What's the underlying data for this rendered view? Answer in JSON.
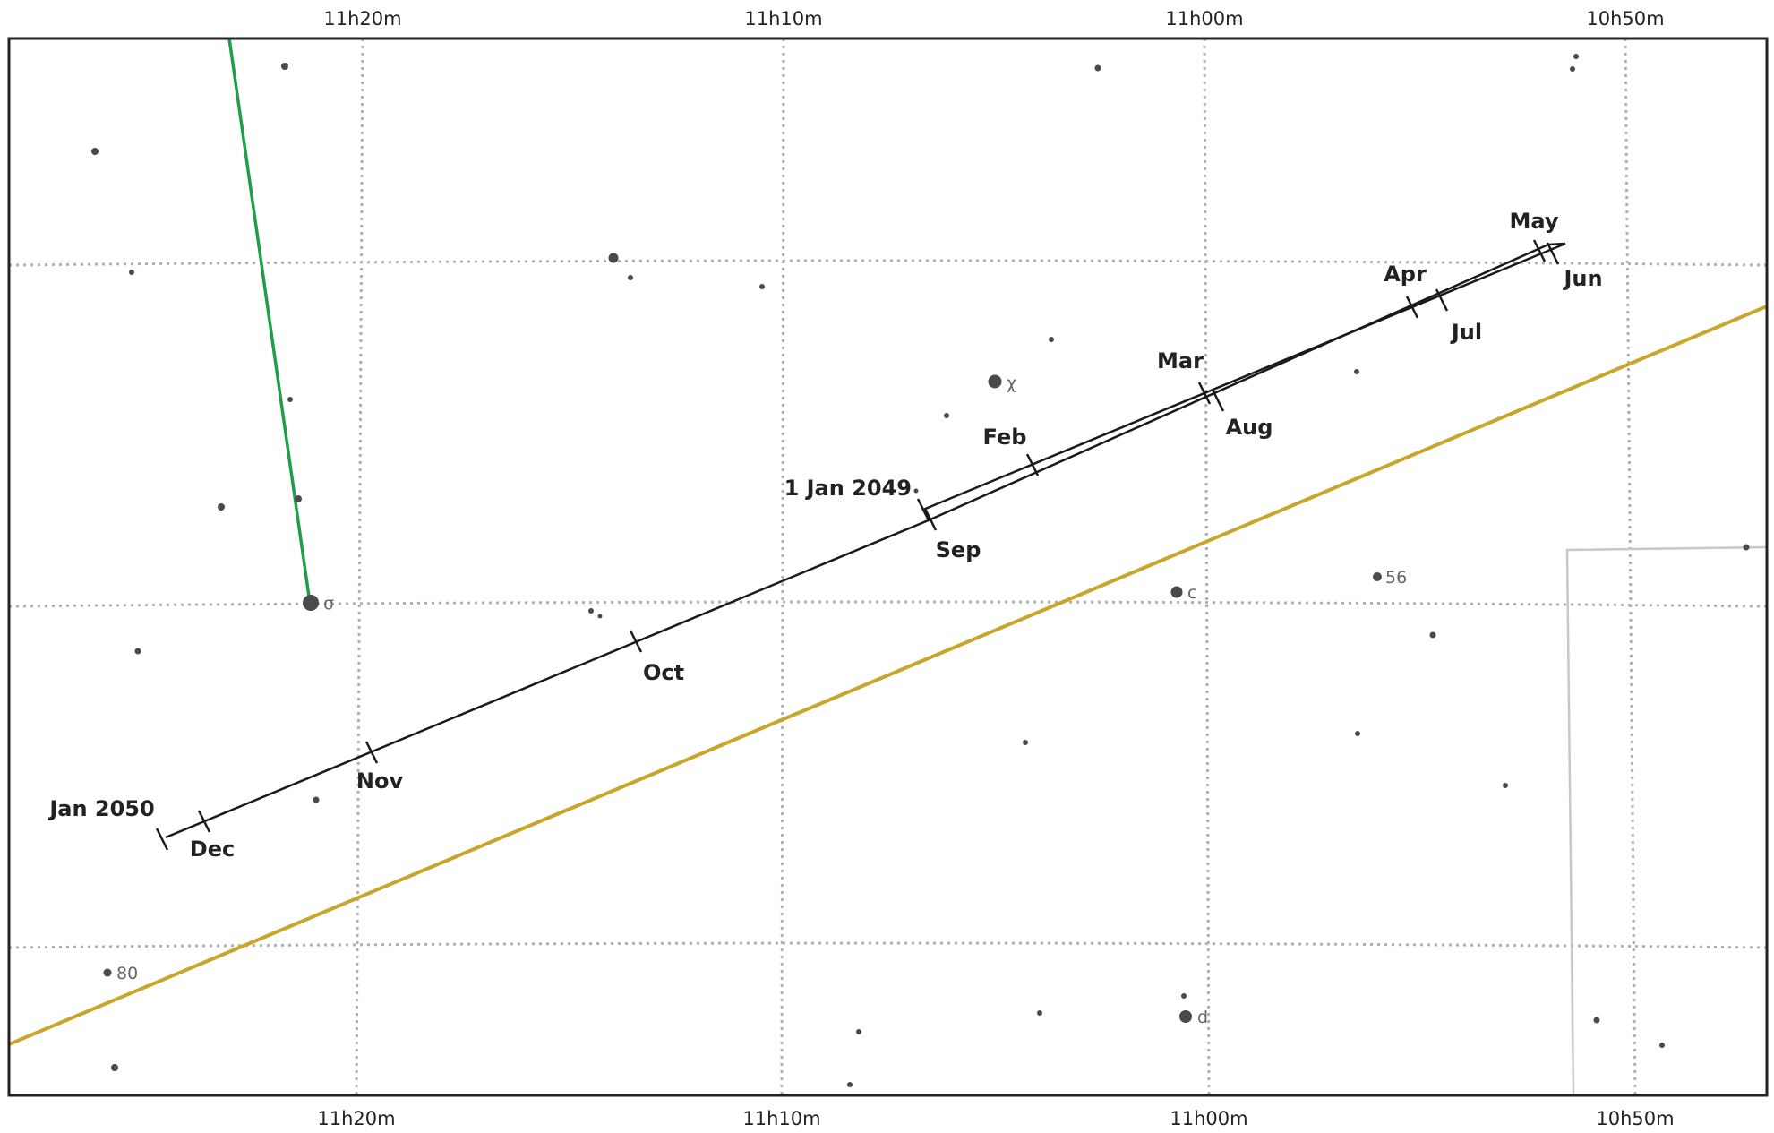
{
  "chart_data": {
    "type": "star-chart",
    "ra_labels_top": [
      "11h20m",
      "11h10m",
      "11h00m",
      "10h50m"
    ],
    "ra_labels_bottom": [
      "11h20m",
      "11h10m",
      "11h00m",
      "10h50m"
    ],
    "path_dates": [
      {
        "label": "1 Jan 2049",
        "date": "2049-01-01"
      },
      {
        "label": "Feb",
        "date": "2049-02-01"
      },
      {
        "label": "Mar",
        "date": "2049-03-01"
      },
      {
        "label": "Apr",
        "date": "2049-04-01"
      },
      {
        "label": "May",
        "date": "2049-05-01"
      },
      {
        "label": "Jun",
        "date": "2049-06-01"
      },
      {
        "label": "Jul",
        "date": "2049-07-01"
      },
      {
        "label": "Aug",
        "date": "2049-08-01"
      },
      {
        "label": "Sep",
        "date": "2049-09-01"
      },
      {
        "label": "Oct",
        "date": "2049-10-01"
      },
      {
        "label": "Nov",
        "date": "2049-11-01"
      },
      {
        "label": "Dec",
        "date": "2049-12-01"
      },
      {
        "label": "Jan 2050",
        "date": "2050-01-01"
      }
    ],
    "named_stars": [
      "σ",
      "χ",
      "c",
      "56",
      "80",
      "d"
    ],
    "colors": {
      "path": "#1a1a1a",
      "ecliptic": "#c8a62a",
      "constellation_line": "#1e9e4a",
      "boundary": "#c8c8c8",
      "grid": "#b0b0b0",
      "star": "#4a4a4a"
    }
  }
}
